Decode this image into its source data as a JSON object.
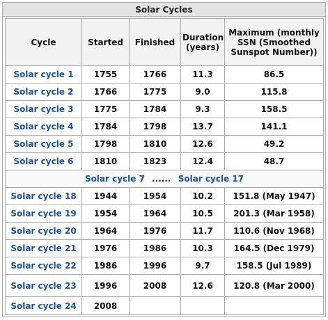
{
  "caption": "Solar Cycles",
  "headers": [
    "Cycle",
    "Started",
    "Finished",
    "Duration (years)",
    "Maximum (monthly SSN (Smoothed Sunspot Number))"
  ],
  "rows_top": [
    {
      "cycle": "Solar cycle 1",
      "started": "1755",
      "finished": "1766",
      "duration": "11.3",
      "max": "86.5"
    },
    {
      "cycle": "Solar cycle 2",
      "started": "1766",
      "finished": "1775",
      "duration": "9.0",
      "max": "115.8"
    },
    {
      "cycle": "Solar cycle 3",
      "started": "1775",
      "finished": "1784",
      "duration": "9.3",
      "max": "158.5"
    },
    {
      "cycle": "Solar cycle 4",
      "started": "1784",
      "finished": "1798",
      "duration": "13.7",
      "max": "141.1"
    },
    {
      "cycle": "Solar cycle 5",
      "started": "1798",
      "finished": "1810",
      "duration": "12.6",
      "max": "49.2"
    },
    {
      "cycle": "Solar cycle 6",
      "started": "1810",
      "finished": "1823",
      "duration": "12.4",
      "max": "48.7"
    }
  ],
  "gap": {
    "from": "Solar cycle 7",
    "dots": "......",
    "to": "Solar cycle 17"
  },
  "rows_bottom": [
    {
      "cycle": "Solar cycle 18",
      "started": "1944",
      "finished": "1954",
      "duration": "10.2",
      "max": "151.8 (May 1947)"
    },
    {
      "cycle": "Solar cycle 19",
      "started": "1954",
      "finished": "1964",
      "duration": "10.5",
      "max": "201.3 (Mar 1958)"
    },
    {
      "cycle": "Solar cycle 20",
      "started": "1964",
      "finished": "1976",
      "duration": "11.7",
      "max": "110.6 (Nov 1968)"
    },
    {
      "cycle": "Solar cycle 21",
      "started": "1976",
      "finished": "1986",
      "duration": "10.3",
      "max": "164.5 (Dec 1979)"
    },
    {
      "cycle": "Solar cycle 22",
      "started": "1986",
      "finished": "1996",
      "duration": "9.7",
      "max": "158.5 (Jul 1989)"
    },
    {
      "cycle": "Solar cycle 23",
      "started": "1996",
      "finished": "2008",
      "duration": "12.6",
      "max": "120.8 (Mar 2000)"
    },
    {
      "cycle": "Solar cycle 24",
      "started": "2008",
      "finished": "",
      "duration": "",
      "max": ""
    }
  ]
}
